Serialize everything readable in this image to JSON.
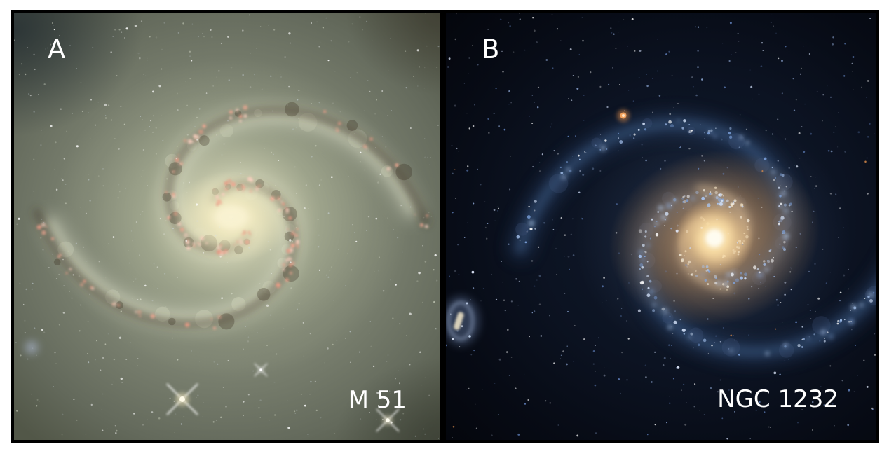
{
  "figure": {
    "kind": "two-panel galaxy comparison figure",
    "panels": [
      {
        "label": "A",
        "caption": "M 51",
        "image": "face-on grand-design spiral galaxy filling frame; pale green-tan disk, bright cream core, dark brown dust lanes, pink star-forming knots, white foreground stars with diffraction spikes"
      },
      {
        "label": "B",
        "caption": "NGC 1232",
        "image": "face-on spiral galaxy on dark sky; blue outer arms dotted with bright blue-white star clusters, orange-tan inner disk with bright cream core, small blue companion galaxy at lower left, bright orange foreground star upper middle"
      }
    ],
    "colors": {
      "page_background": "#ffffff",
      "figure_border": "#000000",
      "label_text": "#ffffff",
      "m51_disk": "#8b9180",
      "m51_core": "#f6efcd",
      "m51_hii_regions": "#f2a791",
      "m51_dust_lanes": "#372c1c",
      "ngc1232_sky": "#06080f",
      "ngc1232_arms": "#9db8e8",
      "ngc1232_inner_disk": "#d8ae80",
      "ngc1232_core": "#fff7dd"
    }
  }
}
